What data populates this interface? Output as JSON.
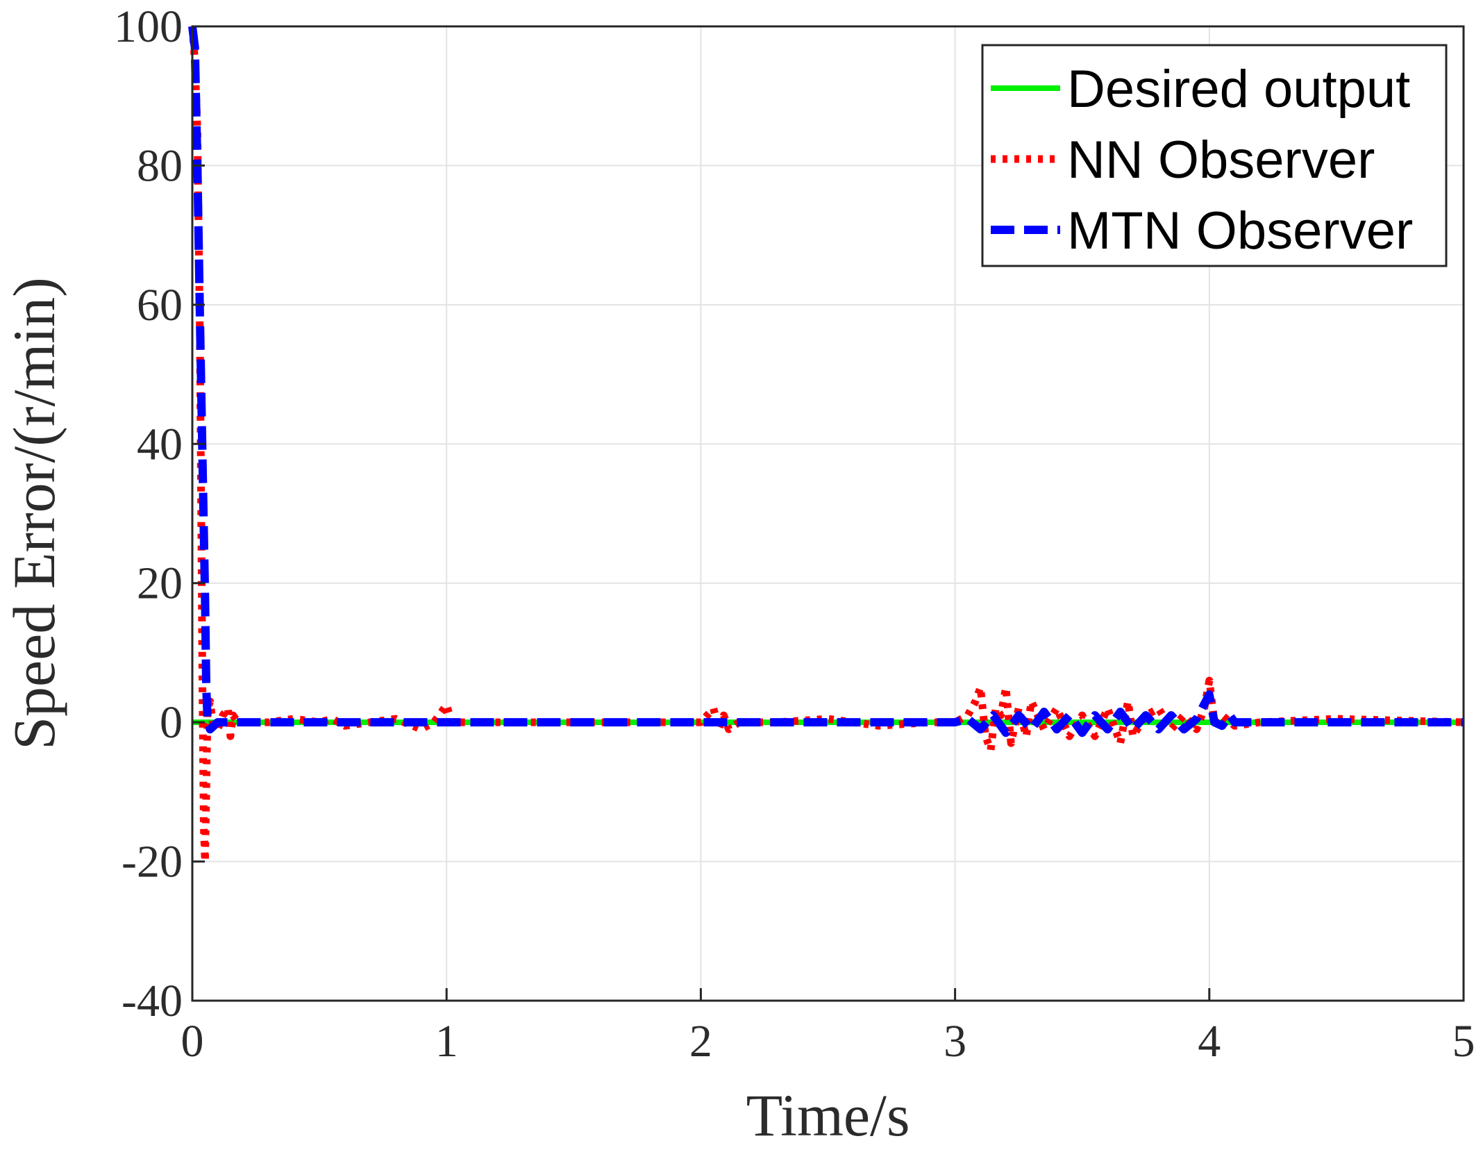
{
  "chart_data": {
    "type": "line",
    "title": "",
    "xlabel": "Time/s",
    "ylabel": "Speed Error/(r/min)",
    "xlim": [
      0,
      5
    ],
    "ylim": [
      -40,
      100
    ],
    "xticks": [
      "0",
      "1",
      "2",
      "3",
      "4",
      "5"
    ],
    "yticks": [
      "-40",
      "-20",
      "0",
      "20",
      "40",
      "60",
      "80",
      "100"
    ],
    "grid": true,
    "legend_position": "top-right",
    "series": [
      {
        "name": "Desired output",
        "color": "#00ee00",
        "style": "solid",
        "x": [
          0,
          5
        ],
        "y": [
          0,
          0
        ]
      },
      {
        "name": "NN Observer",
        "color": "#ff0000",
        "style": "dotted",
        "x": [
          0.0,
          0.01,
          0.02,
          0.03,
          0.035,
          0.04,
          0.045,
          0.05,
          0.055,
          0.06,
          0.07,
          0.08,
          0.1,
          0.12,
          0.14,
          0.15,
          0.16,
          0.18,
          0.2,
          0.3,
          0.4,
          0.5,
          0.55,
          0.6,
          0.7,
          0.8,
          0.9,
          0.95,
          1.0,
          1.02,
          1.1,
          1.5,
          2.0,
          2.05,
          2.07,
          2.09,
          2.11,
          2.15,
          2.3,
          2.5,
          2.7,
          2.9,
          3.0,
          3.05,
          3.08,
          3.1,
          3.12,
          3.14,
          3.16,
          3.18,
          3.2,
          3.22,
          3.25,
          3.28,
          3.3,
          3.35,
          3.4,
          3.45,
          3.5,
          3.55,
          3.6,
          3.65,
          3.68,
          3.7,
          3.75,
          3.8,
          3.85,
          3.9,
          3.95,
          3.98,
          4.0,
          4.02,
          4.05,
          4.1,
          4.2,
          4.5,
          5.0
        ],
        "y": [
          100,
          95,
          85,
          55,
          30,
          5,
          -15,
          -20,
          -10,
          2,
          3,
          0,
          -1,
          1,
          2,
          -2,
          1,
          0,
          0,
          0,
          0.5,
          0,
          0.5,
          -0.5,
          0,
          0.5,
          -1,
          0,
          2.5,
          0,
          0,
          0,
          0,
          2,
          -1,
          1,
          -1,
          0,
          0,
          0.5,
          -0.5,
          0,
          0,
          1,
          3,
          5,
          -2,
          -4,
          2,
          1,
          5,
          -3,
          2,
          -2,
          3,
          -1,
          2,
          -2,
          1,
          -2,
          2,
          -3,
          3,
          -2,
          1,
          2,
          -1,
          1,
          -1,
          2,
          6,
          0,
          1,
          -0.5,
          0,
          0.5,
          0
        ]
      },
      {
        "name": "MTN Observer",
        "color": "#0000ff",
        "style": "dashed",
        "x": [
          0.0,
          0.01,
          0.02,
          0.03,
          0.04,
          0.05,
          0.055,
          0.06,
          0.07,
          0.1,
          0.5,
          1.0,
          2.0,
          2.5,
          3.0,
          3.05,
          3.1,
          3.15,
          3.2,
          3.25,
          3.3,
          3.35,
          3.4,
          3.45,
          3.5,
          3.55,
          3.6,
          3.65,
          3.7,
          3.75,
          3.8,
          3.85,
          3.9,
          3.95,
          4.0,
          4.02,
          4.05,
          4.08,
          4.1,
          4.2,
          5.0
        ],
        "y": [
          100,
          97,
          80,
          58,
          38,
          18,
          5,
          0,
          -1,
          0,
          0,
          0,
          0,
          0,
          0,
          0.5,
          -1,
          1,
          -1.5,
          1,
          -1,
          1.5,
          -1,
          1,
          -1.5,
          1,
          -1,
          1.5,
          -1,
          1,
          -1,
          1,
          -1,
          0.5,
          4,
          0,
          -0.5,
          1,
          0,
          0,
          0
        ]
      }
    ]
  }
}
